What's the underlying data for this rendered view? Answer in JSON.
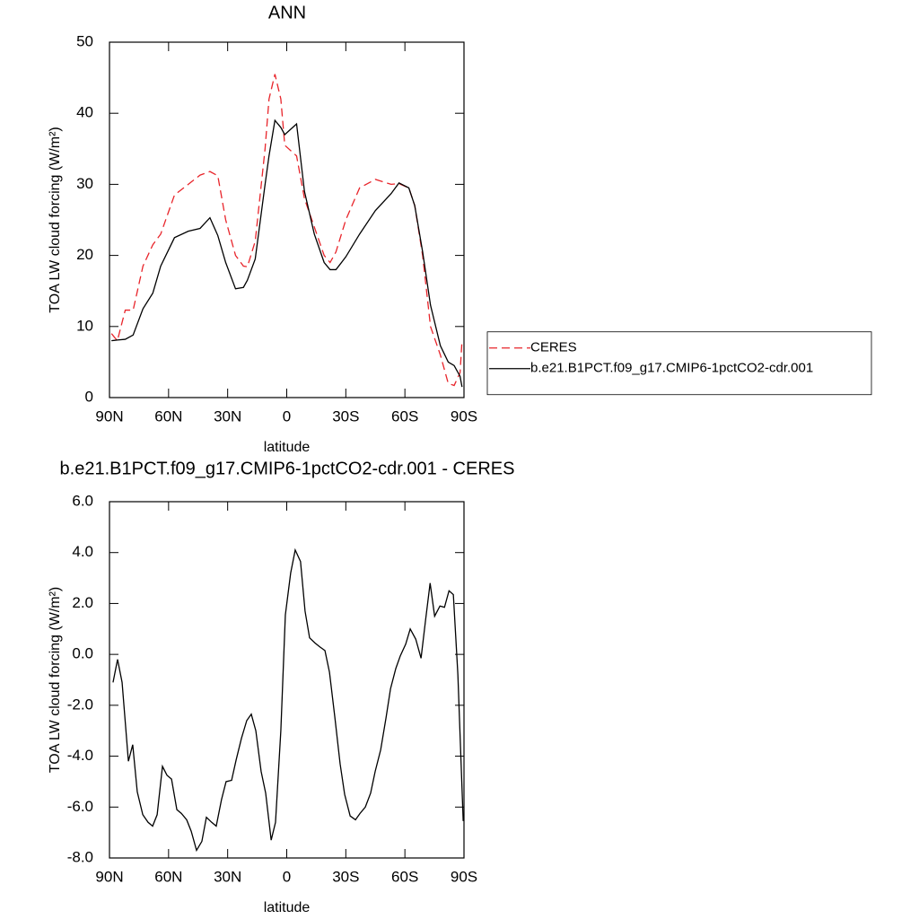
{
  "chart_data": [
    {
      "type": "line",
      "title": "ANN",
      "xlabel": "latitude",
      "ylabel": "TOA LW cloud forcing (W/m²)",
      "xlim": [
        90,
        -90
      ],
      "xticks": [
        {
          "value": 90,
          "label": "90N"
        },
        {
          "value": 60,
          "label": "60N"
        },
        {
          "value": 30,
          "label": "30N"
        },
        0,
        {
          "value": -30,
          "label": "30S"
        },
        {
          "value": -60,
          "label": "60S"
        },
        {
          "value": -90,
          "label": "90S"
        }
      ],
      "ylim": [
        0,
        50
      ],
      "yticks": [
        0,
        10,
        20,
        30,
        40,
        50
      ],
      "legend": "right",
      "x": [
        89,
        86,
        82,
        78,
        73,
        68,
        64,
        57,
        50,
        44,
        39,
        35,
        31,
        26,
        22,
        20,
        16,
        11,
        9,
        6,
        3,
        1,
        -1,
        -5,
        -9,
        -14,
        -19,
        -22,
        -25,
        -30,
        -37,
        -45,
        -53,
        -57,
        -62,
        -65,
        -69,
        -73,
        -78,
        -82,
        -85,
        -88,
        -89
      ],
      "series": [
        {
          "name": "CERES",
          "color": "#e8242a",
          "dashed": true,
          "values": [
            9,
            8,
            12.3,
            12.3,
            18.5,
            21.5,
            23,
            28.5,
            30,
            31.3,
            31.8,
            31.2,
            25,
            20,
            18.5,
            18.4,
            22,
            35,
            42,
            45.5,
            42,
            35.5,
            35,
            34,
            28,
            24,
            20,
            19,
            20.5,
            25,
            29.5,
            30.7,
            30,
            30.1,
            29.5,
            27,
            20,
            10,
            6,
            2,
            1.7,
            3.5,
            8
          ]
        },
        {
          "name": "b.e21.B1PCT.f09_g17.CMIP6-1pctCO2-cdr.001",
          "color": "#000000",
          "dashed": false,
          "values": [
            8,
            8.1,
            8.2,
            8.8,
            12.5,
            14.7,
            18.5,
            22.5,
            23.4,
            23.8,
            25.3,
            22.8,
            19,
            15.3,
            15.5,
            16.5,
            19.5,
            30,
            34,
            39,
            38,
            37,
            37.5,
            38.5,
            29,
            23,
            19,
            18,
            18,
            19.8,
            23,
            26.3,
            28.7,
            30.2,
            29.5,
            27,
            20.5,
            13,
            7.3,
            5,
            4.5,
            3,
            1.5
          ]
        }
      ]
    },
    {
      "type": "line",
      "title": "b.e21.B1PCT.f09_g17.CMIP6-1pctCO2-cdr.001 - CERES",
      "xlabel": "latitude",
      "ylabel": "TOA LW cloud forcing (W/m²)",
      "xlim": [
        90,
        -90
      ],
      "xticks": [
        {
          "value": 90,
          "label": "90N"
        },
        {
          "value": 60,
          "label": "60N"
        },
        {
          "value": 30,
          "label": "30N"
        },
        0,
        {
          "value": -30,
          "label": "30S"
        },
        {
          "value": -60,
          "label": "60S"
        },
        {
          "value": -90,
          "label": "90S"
        }
      ],
      "ylim": [
        -8,
        6
      ],
      "yticks": [
        {
          "value": -8,
          "label": "-8.0"
        },
        {
          "value": -6,
          "label": "-6.0"
        },
        {
          "value": -4,
          "label": "-4.0"
        },
        {
          "value": -2,
          "label": "-2.0"
        },
        {
          "value": 0,
          "label": "0.0"
        },
        {
          "value": 2,
          "label": "2.0"
        },
        {
          "value": 4,
          "label": "4.0"
        },
        {
          "value": 6,
          "label": "6.0"
        }
      ],
      "x": [
        88.2,
        85.9,
        83.6,
        80.4,
        78.2,
        75.9,
        73.1,
        70.4,
        68.1,
        65.8,
        63.1,
        60.8,
        58.5,
        55.8,
        53.5,
        50.8,
        48.5,
        45.8,
        43.1,
        40.8,
        38.1,
        35.8,
        33.1,
        30.8,
        28,
        25.7,
        23,
        20.3,
        18,
        15.7,
        13,
        10.7,
        7.9,
        5.7,
        3,
        0.7,
        -2,
        -4.3,
        -7,
        -9.3,
        -11.6,
        -14.3,
        -16.7,
        -19.4,
        -21.7,
        -24.4,
        -27.1,
        -29.4,
        -32.2,
        -34.9,
        -37.2,
        -39.9,
        -42.6,
        -44.9,
        -47.7,
        -50.4,
        -52.7,
        -55.4,
        -57.7,
        -60.4,
        -62.7,
        -65.5,
        -68.2,
        -70.5,
        -72.8,
        -75.1,
        -77.8,
        -80.1,
        -82.4,
        -84.6,
        -86.9,
        -89.6
      ],
      "series": [
        {
          "color": "#000000",
          "dashed": false,
          "values": [
            -1.1,
            -0.2,
            -1.1,
            -4.2,
            -3.55,
            -5.4,
            -6.3,
            -6.6,
            -6.75,
            -6.3,
            -4.4,
            -4.75,
            -4.9,
            -6.1,
            -6.25,
            -6.5,
            -6.95,
            -7.7,
            -7.35,
            -6.4,
            -6.6,
            -6.75,
            -5.7,
            -5,
            -4.95,
            -4.15,
            -3.3,
            -2.6,
            -2.35,
            -3,
            -4.6,
            -5.45,
            -7.3,
            -6.6,
            -3,
            1.55,
            3.2,
            4.1,
            3.65,
            1.7,
            0.65,
            0.45,
            0.3,
            0.15,
            -0.7,
            -2.45,
            -4.3,
            -5.5,
            -6.35,
            -6.5,
            -6.25,
            -6,
            -5.45,
            -4.6,
            -3.75,
            -2.5,
            -1.35,
            -0.55,
            -0.05,
            0.4,
            1,
            0.6,
            -0.15,
            1.35,
            2.8,
            1.5,
            1.9,
            1.85,
            2.5,
            2.35,
            -0.8,
            -6.55
          ]
        }
      ]
    }
  ]
}
